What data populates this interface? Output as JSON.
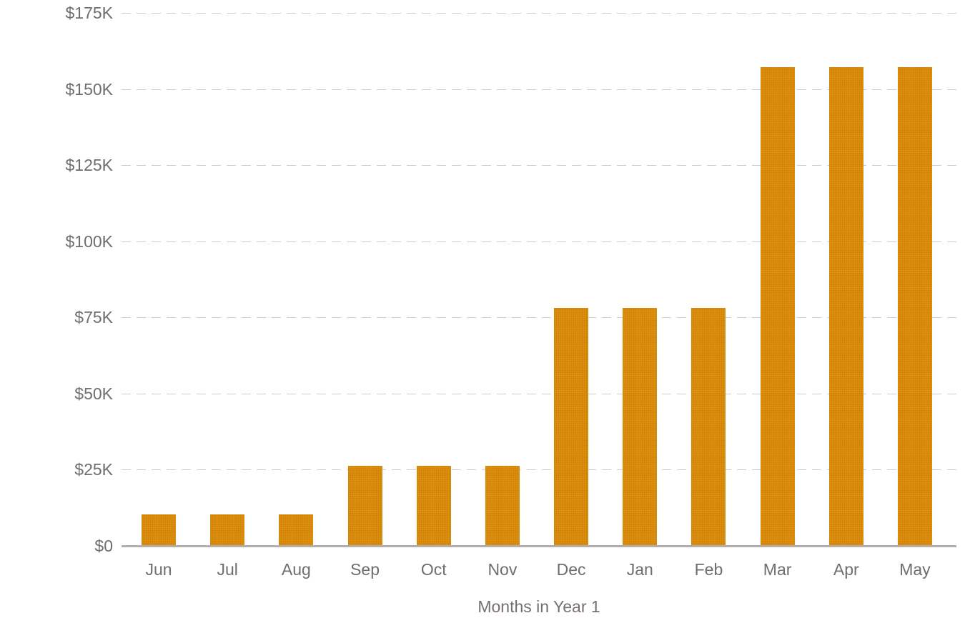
{
  "chart_data": {
    "type": "bar",
    "title": "",
    "xlabel": "Months in Year 1",
    "ylabel": "",
    "categories": [
      "Jun",
      "Jul",
      "Aug",
      "Sep",
      "Oct",
      "Nov",
      "Dec",
      "Jan",
      "Feb",
      "Mar",
      "Apr",
      "May"
    ],
    "values": [
      10000,
      10000,
      10000,
      26000,
      26000,
      26000,
      78000,
      78000,
      78000,
      157000,
      157000,
      157000
    ],
    "ylim": [
      0,
      175000
    ],
    "ytick_interval": 25000,
    "ytick_labels": [
      "$0",
      "$25K",
      "$50K",
      "$75K",
      "$100K",
      "$125K",
      "$150K",
      "$175K"
    ],
    "grid": "horizontal-dashed",
    "legend": "none",
    "colors": {
      "bar": "#D78A0E",
      "grid": "#CCCCCC",
      "axis_line": "#B0AFAD",
      "tick_label": "#6E6E6E",
      "axis_title": "#776F6F",
      "background": "#FFFFFF"
    }
  }
}
